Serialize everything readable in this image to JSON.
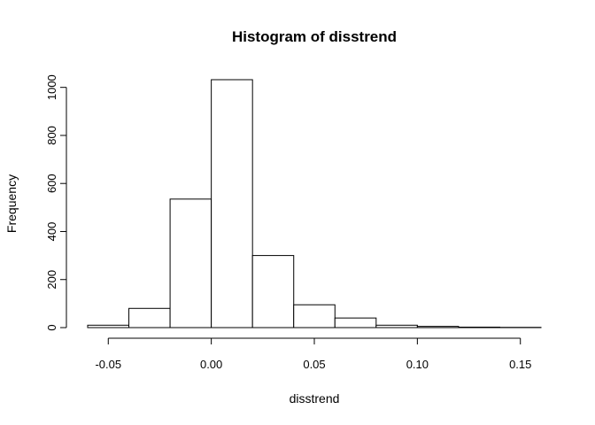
{
  "chart_data": {
    "type": "bar",
    "title": "Histogram of disstrend",
    "xlabel": "disstrend",
    "ylabel": "Frequency",
    "bin_edges": [
      -0.06,
      -0.04,
      -0.02,
      0.0,
      0.02,
      0.04,
      0.06,
      0.08,
      0.1,
      0.12,
      0.14,
      0.16
    ],
    "values": [
      10,
      80,
      535,
      1032,
      300,
      95,
      40,
      10,
      5,
      2,
      1
    ],
    "xlim": [
      -0.06,
      0.16
    ],
    "ylim": [
      0,
      1032
    ],
    "x_ticks": [
      -0.05,
      0.0,
      0.05,
      0.1,
      0.15
    ],
    "x_tick_labels": [
      "-0.05",
      "0.00",
      "0.05",
      "0.10",
      "0.15"
    ],
    "y_ticks": [
      0,
      200,
      400,
      600,
      800,
      1000
    ],
    "y_tick_labels": [
      "0",
      "200",
      "400",
      "600",
      "800",
      "1000"
    ],
    "grid": false
  }
}
